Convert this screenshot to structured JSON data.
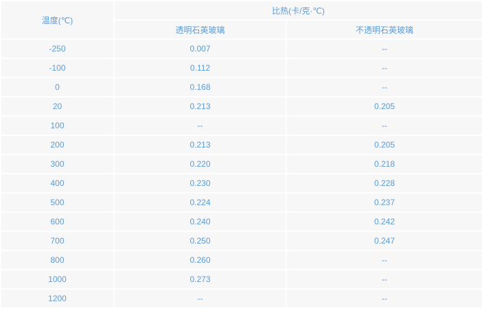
{
  "header": {
    "temperature": "温度(℃)",
    "specific_heat": "比热(卡/克·℃)",
    "transparent": "透明石英玻璃",
    "opaque": "不透明石英玻璃"
  },
  "rows": [
    {
      "t": "-250",
      "a": "0.007",
      "b": "--"
    },
    {
      "t": "-100",
      "a": "0.112",
      "b": "--"
    },
    {
      "t": "0",
      "a": "0.168",
      "b": "--"
    },
    {
      "t": "20",
      "a": "0.213",
      "b": "0.205"
    },
    {
      "t": "100",
      "a": "--",
      "b": "--"
    },
    {
      "t": "200",
      "a": "0.213",
      "b": "0.205"
    },
    {
      "t": "300",
      "a": "0.220",
      "b": "0.218"
    },
    {
      "t": "400",
      "a": "0.230",
      "b": "0.228"
    },
    {
      "t": "500",
      "a": "0.224",
      "b": "0.237"
    },
    {
      "t": "600",
      "a": "0.240",
      "b": "0.242"
    },
    {
      "t": "700",
      "a": "0.250",
      "b": "0.247"
    },
    {
      "t": "800",
      "a": "0.260",
      "b": "--"
    },
    {
      "t": "1000",
      "a": "0.273",
      "b": "--"
    },
    {
      "t": "1200",
      "a": "--",
      "b": "--"
    }
  ]
}
